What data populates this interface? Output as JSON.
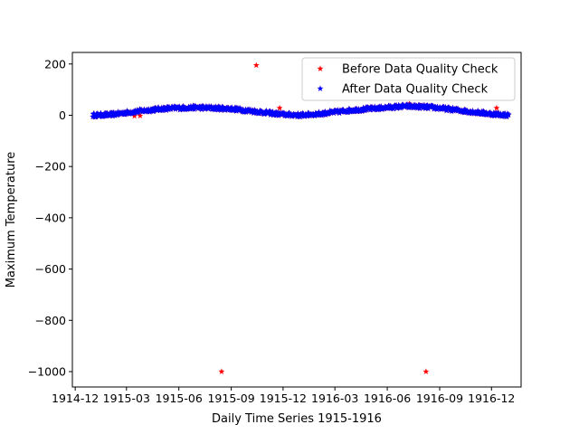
{
  "chart_data": {
    "type": "scatter",
    "title": "",
    "xlabel": "Daily Time Series 1915-1916",
    "ylabel": "Maximum Temperature",
    "x_ticks": [
      "1914-12",
      "1915-03",
      "1915-06",
      "1915-09",
      "1915-12",
      "1916-03",
      "1916-06",
      "1916-09",
      "1916-12"
    ],
    "x_range": [
      "1914-11-26",
      "1917-01-22"
    ],
    "y_ticks": [
      200,
      0,
      -200,
      -400,
      -600,
      -800,
      -1000
    ],
    "ylim": [
      -1060,
      245
    ],
    "grid": false,
    "legend_position": "top-right",
    "marker": "star",
    "series": [
      {
        "name": "Before Data Quality Check",
        "color": "#ff0000",
        "outliers": [
          {
            "date": "1915-08-15",
            "value": -1000
          },
          {
            "date": "1915-10-15",
            "value": 195
          },
          {
            "date": "1915-11-25",
            "value": 28
          },
          {
            "date": "1916-07-10",
            "value": 45
          },
          {
            "date": "1916-08-08",
            "value": -1000
          },
          {
            "date": "1916-12-10",
            "value": 28
          },
          {
            "date": "1915-03-15",
            "value": -3
          },
          {
            "date": "1915-03-25",
            "value": -2
          }
        ]
      },
      {
        "name": "After Data Quality Check",
        "color": "#0000ff",
        "start": "1915-01-01",
        "end": "1916-12-31",
        "profile": [
          {
            "date": "1915-01-01",
            "value": 0
          },
          {
            "date": "1915-02-01",
            "value": 2
          },
          {
            "date": "1915-03-01",
            "value": 10
          },
          {
            "date": "1915-04-01",
            "value": 18
          },
          {
            "date": "1915-05-01",
            "value": 25
          },
          {
            "date": "1915-06-01",
            "value": 28
          },
          {
            "date": "1915-07-01",
            "value": 30
          },
          {
            "date": "1915-08-01",
            "value": 28
          },
          {
            "date": "1915-09-01",
            "value": 25
          },
          {
            "date": "1915-10-01",
            "value": 18
          },
          {
            "date": "1915-11-01",
            "value": 10
          },
          {
            "date": "1915-12-01",
            "value": 3
          },
          {
            "date": "1916-01-01",
            "value": 0
          },
          {
            "date": "1916-02-01",
            "value": 5
          },
          {
            "date": "1916-03-01",
            "value": 12
          },
          {
            "date": "1916-04-01",
            "value": 20
          },
          {
            "date": "1916-05-01",
            "value": 25
          },
          {
            "date": "1916-06-01",
            "value": 30
          },
          {
            "date": "1916-07-01",
            "value": 35
          },
          {
            "date": "1916-08-01",
            "value": 33
          },
          {
            "date": "1916-09-01",
            "value": 28
          },
          {
            "date": "1916-10-01",
            "value": 20
          },
          {
            "date": "1916-11-01",
            "value": 12
          },
          {
            "date": "1916-12-01",
            "value": 5
          },
          {
            "date": "1916-12-31",
            "value": 0
          }
        ]
      }
    ]
  }
}
